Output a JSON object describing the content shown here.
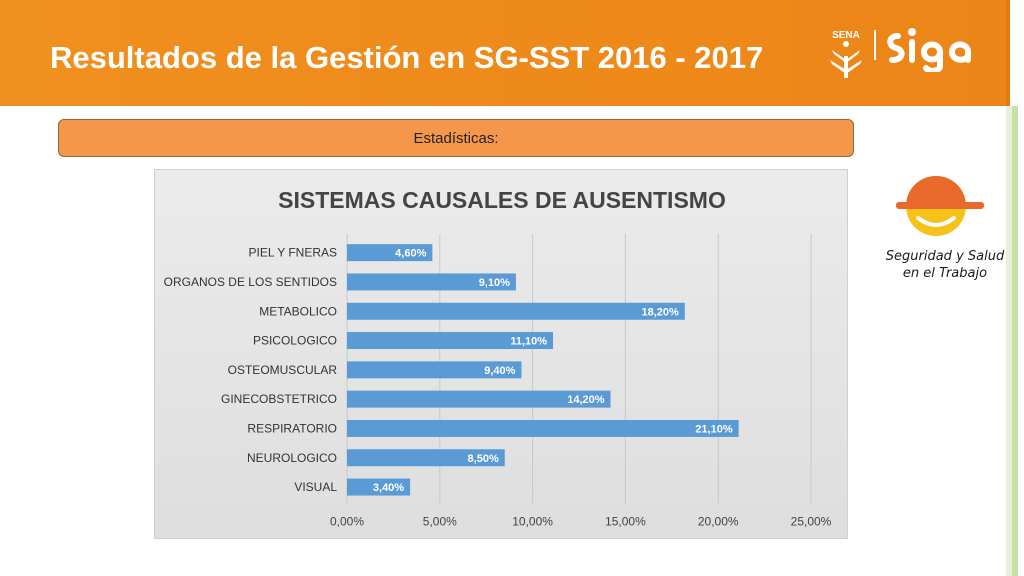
{
  "header": {
    "title": "Resultados de la Gestión en SG-SST 2016 - 2017"
  },
  "logos": {
    "sena": "SENA",
    "siga": "siga",
    "safety_line1": "Seguridad y Salud",
    "safety_line2": "en el Trabajo"
  },
  "subtitle": "Estadísticas:",
  "colors": {
    "header_orange": "#ef8c1c",
    "subtitle_orange": "#f5974a",
    "bar_blue": "#5b9bd5",
    "helmet_orange": "#e8692a",
    "face_yellow": "#f6c21a"
  },
  "chart_data": {
    "type": "bar",
    "orientation": "horizontal",
    "title": "SISTEMAS CAUSALES DE AUSENTISMO",
    "categories": [
      "PIEL Y FNERAS",
      "ORGANOS DE LOS SENTIDOS",
      "METABOLICO",
      "PSICOLOGICO",
      "OSTEOMUSCULAR",
      "GINECOBSTETRICO",
      "RESPIRATORIO",
      "NEUROLOGICO",
      "VISUAL"
    ],
    "values": [
      4.6,
      9.1,
      18.2,
      11.1,
      9.4,
      14.2,
      21.1,
      8.5,
      3.4
    ],
    "data_labels": [
      "4,60%",
      "9,10%",
      "18,20%",
      "11,10%",
      "9,40%",
      "14,20%",
      "21,10%",
      "8,50%",
      "3,40%"
    ],
    "xlim": [
      0,
      25
    ],
    "xticks": [
      0,
      5,
      10,
      15,
      20,
      25
    ],
    "xtick_labels": [
      "0,00%",
      "5,00%",
      "10,00%",
      "15,00%",
      "20,00%",
      "25,00%"
    ],
    "xlabel": "",
    "ylabel": "",
    "grid": true,
    "legend": "none"
  }
}
